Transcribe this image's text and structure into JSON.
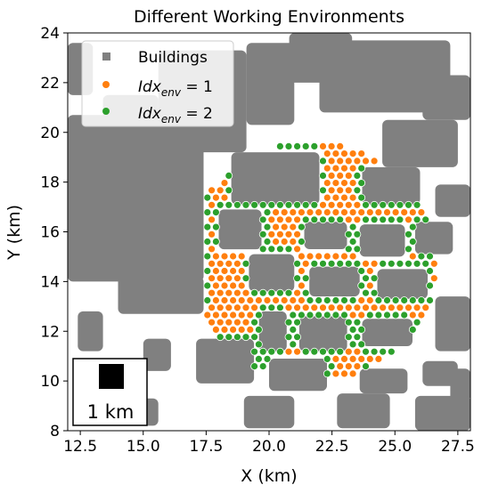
{
  "chart_data": {
    "type": "scatter",
    "title": "Different Working Environments",
    "xlabel": "X (km)",
    "ylabel": "Y (km)",
    "xlim": [
      12.0,
      28.0
    ],
    "ylim": [
      8.0,
      24.0
    ],
    "xticks": [
      "12.5",
      "15.0",
      "17.5",
      "20.0",
      "22.5",
      "25.0",
      "27.5"
    ],
    "yticks": [
      "8",
      "10",
      "12",
      "14",
      "16",
      "18",
      "20",
      "22",
      "24"
    ],
    "grid": false,
    "legend_position": "top-left",
    "legend": [
      {
        "key": "buildings",
        "label": "Buildings"
      },
      {
        "key": "env1",
        "label_main": "Idx",
        "label_sub": "env",
        "label_tail": " = 1"
      },
      {
        "key": "env2",
        "label_main": "Idx",
        "label_sub": "env",
        "label_tail": " = 2"
      }
    ],
    "scale_bar": {
      "label": "1 km"
    },
    "colors": {
      "buildings": "#808080",
      "env1": "#ff7f0e",
      "env2": "#2ca02c"
    },
    "buildings": [
      [
        12.0,
        13.0,
        21.5,
        23.6
      ],
      [
        12.0,
        17.4,
        14.0,
        20.7
      ],
      [
        13.4,
        15.6,
        19.9,
        21.5
      ],
      [
        14.0,
        17.4,
        12.7,
        14.2
      ],
      [
        15.6,
        19.1,
        19.2,
        23.3
      ],
      [
        19.1,
        21.0,
        20.3,
        23.6
      ],
      [
        20.8,
        23.3,
        22.0,
        24.0
      ],
      [
        22.0,
        27.2,
        20.8,
        23.7
      ],
      [
        26.1,
        28.0,
        20.5,
        22.3
      ],
      [
        24.5,
        27.5,
        18.6,
        20.5
      ],
      [
        18.5,
        22.0,
        17.1,
        19.2
      ],
      [
        23.7,
        26.0,
        17.1,
        18.6
      ],
      [
        26.6,
        28.0,
        16.6,
        17.9
      ],
      [
        18.0,
        19.7,
        15.3,
        16.9
      ],
      [
        21.4,
        23.1,
        15.3,
        16.4
      ],
      [
        23.6,
        25.4,
        15.0,
        16.3
      ],
      [
        25.8,
        27.3,
        15.1,
        16.4
      ],
      [
        19.2,
        21.0,
        13.6,
        15.1
      ],
      [
        21.6,
        23.6,
        13.4,
        14.6
      ],
      [
        24.3,
        26.3,
        13.3,
        14.5
      ],
      [
        19.6,
        20.7,
        11.2,
        12.8
      ],
      [
        21.2,
        23.1,
        11.2,
        12.6
      ],
      [
        23.7,
        25.7,
        11.4,
        12.5
      ],
      [
        26.6,
        28.0,
        11.2,
        13.4
      ],
      [
        17.1,
        19.4,
        9.9,
        11.7
      ],
      [
        20.0,
        22.3,
        9.6,
        10.9
      ],
      [
        12.4,
        13.4,
        11.2,
        12.8
      ],
      [
        15.0,
        16.1,
        10.4,
        11.7
      ],
      [
        23.6,
        25.5,
        9.5,
        10.5
      ],
      [
        26.1,
        27.5,
        9.8,
        10.8
      ],
      [
        27.2,
        28.0,
        9.2,
        10.5
      ],
      [
        14.0,
        15.6,
        8.2,
        9.3
      ],
      [
        19.0,
        21.0,
        8.1,
        9.4
      ],
      [
        22.7,
        24.8,
        8.1,
        9.5
      ],
      [
        25.8,
        28.0,
        8.0,
        9.4
      ]
    ],
    "region_center": [
      21.7,
      14.8
    ],
    "region_radius": [
      5.0,
      4.8
    ],
    "point_spacing_x": 0.34,
    "point_spacing_y": 0.295
  }
}
